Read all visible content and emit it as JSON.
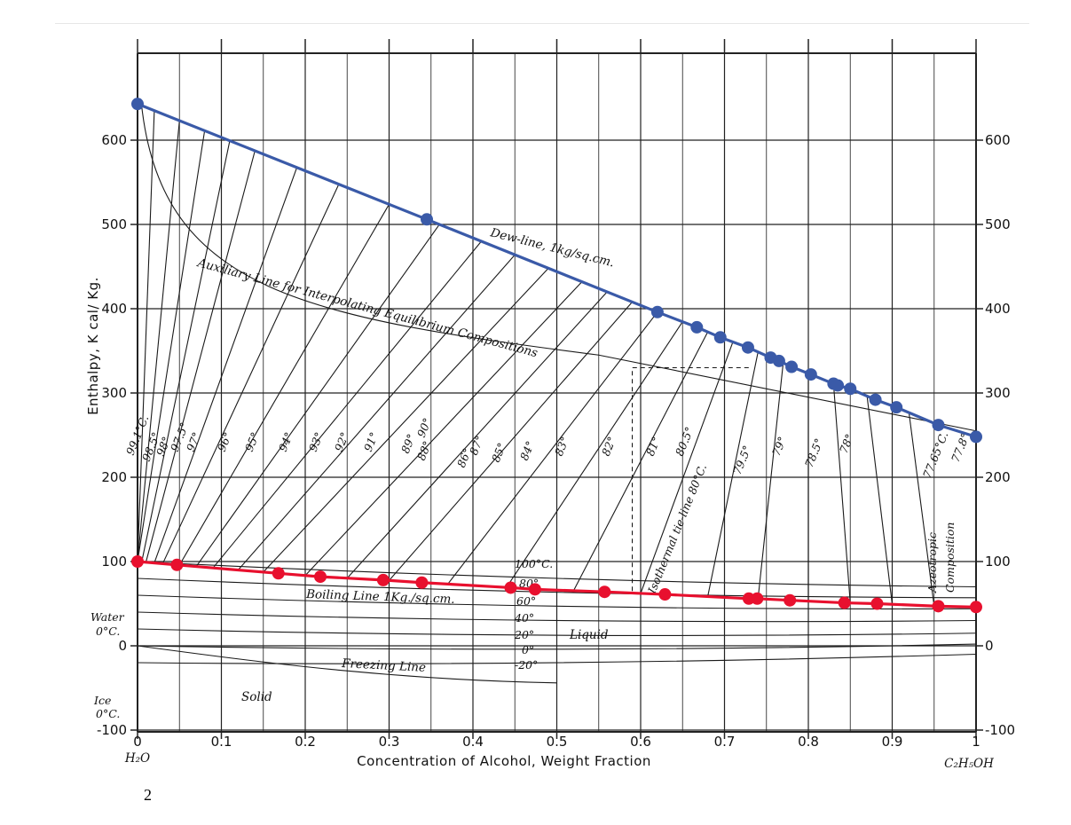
{
  "chart_data": {
    "type": "line",
    "title": "",
    "xlabel": "Concentration of Alcohol, Weight Fraction",
    "ylabel": "Enthalpy, K cal/ Kg.",
    "xlim": [
      0,
      1
    ],
    "ylim": [
      -100,
      650
    ],
    "x_ticks": [
      0,
      0.1,
      0.2,
      0.3,
      0.4,
      0.5,
      0.6,
      0.7,
      0.8,
      0.9,
      1
    ],
    "x_tick_labels": [
      "0",
      "0.1",
      "0.2",
      "0.3",
      "0.4",
      "0.5",
      "0.6",
      "0.7",
      "0.8",
      "0.9",
      "1"
    ],
    "y_ticks": [
      -100,
      0,
      100,
      200,
      300,
      400,
      500,
      600
    ],
    "y_tick_labels": [
      "-100",
      "0",
      "100",
      "200",
      "300",
      "400",
      "500",
      "600"
    ],
    "x_end_labels": {
      "left": "H₂O",
      "right": "C₂H₅OH"
    },
    "grid": true,
    "series": [
      {
        "name": "Dew-line, 1kg/sq.cm.",
        "color": "#3a5aa8",
        "x": [
          0,
          0.345,
          0.62,
          0.667,
          0.695,
          0.728,
          0.755,
          0.765,
          0.78,
          0.803,
          0.83,
          0.835,
          0.85,
          0.88,
          0.905,
          0.955,
          1.0
        ],
        "y": [
          643,
          506,
          396,
          378,
          366,
          354,
          342,
          338,
          331,
          322,
          311,
          309,
          305,
          292,
          283,
          262,
          248
        ]
      },
      {
        "name": "Boiling Line 1Kg./sq.cm.",
        "color": "#e8102e",
        "x": [
          0,
          0.047,
          0.168,
          0.218,
          0.293,
          0.339,
          0.445,
          0.474,
          0.557,
          0.629,
          0.729,
          0.739,
          0.778,
          0.843,
          0.882,
          0.955,
          1.0
        ],
        "y": [
          100,
          96,
          86,
          82,
          78,
          75,
          69,
          67,
          64,
          61,
          56,
          56,
          54,
          51,
          50,
          47,
          46
        ]
      }
    ],
    "annotations": {
      "dew_line": "Dew-line, 1kg/sq.cm.",
      "aux_line": "Auxiliary Line for Interpolating Equilibrium Compositions",
      "boiling_line": "Boiling Line 1Kg./sq.cm.",
      "freezing_line": "Freezing Line",
      "isothermal": "Isothermal tie-line 80°C.",
      "azeotrope_1": "Azeotropic",
      "azeotrope_2": "Composition",
      "liquid": "Liquid",
      "solid": "Solid",
      "water_1": "Water",
      "water_2": "0°C.",
      "ice_1": "Ice",
      "ice_2": "0°C.",
      "isotherm_labels": [
        "100°C.",
        "80°",
        "60°",
        "40°",
        "20°",
        "0°",
        "-20°"
      ],
      "tie_line_temps": [
        "99.1°C.",
        "98.5°",
        "98°",
        "97.5°",
        "97°",
        "96°",
        "95°",
        "94°",
        "93°",
        "92°",
        "91°",
        "89°",
        "90°",
        "88°",
        "86°",
        "87°",
        "85°",
        "84°",
        "83°",
        "82°",
        "81°",
        "80.5°",
        "79.5°",
        "79°",
        "78.5°",
        "78°",
        "77.65°C.",
        "77.8°"
      ]
    }
  },
  "page_number": "2"
}
